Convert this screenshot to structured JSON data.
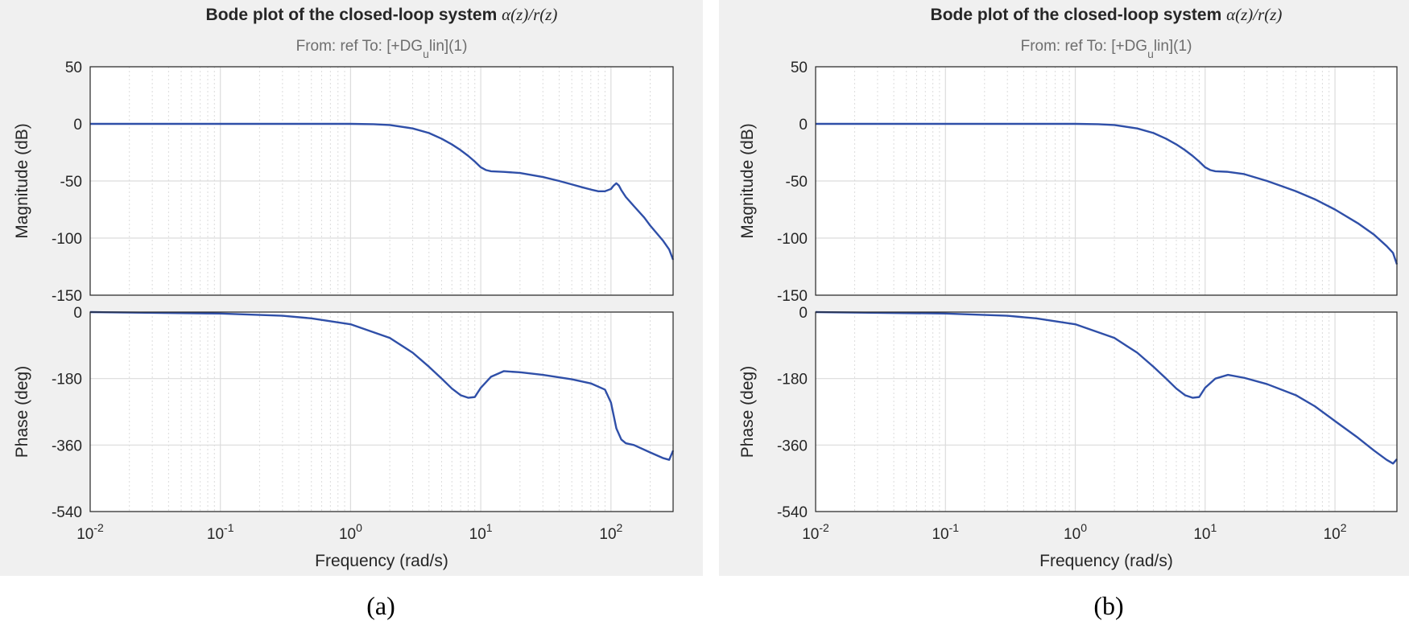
{
  "colors": {
    "panel_bg": "#f0f0f0",
    "axes_bg": "#ffffff",
    "line": "#2f4fa8",
    "grid": "#dcdcdc"
  },
  "chart_data": [
    {
      "type": "line",
      "caption": "(a)",
      "title": "Bode plot of the closed-loop system",
      "title_symbol": "α(z)/r(z)",
      "subtitle": {
        "prefix": "From: ref  To: [+DG",
        "sub": "u",
        "suffix": "lin](1)"
      },
      "xlabel": "Frequency  (rad/s)",
      "xscale": "log",
      "xlim": [
        0.01,
        300
      ],
      "xticks": [
        {
          "base": "10",
          "exp": "-2"
        },
        {
          "base": "10",
          "exp": "-1"
        },
        {
          "base": "10",
          "exp": "0"
        },
        {
          "base": "10",
          "exp": "1"
        },
        {
          "base": "10",
          "exp": "2"
        }
      ],
      "magnitude": {
        "ylabel": "Magnitude (dB)",
        "ylim": [
          -150,
          50
        ],
        "yticks": [
          "50",
          "0",
          "-50",
          "-100",
          "-150"
        ],
        "x": [
          0.01,
          0.1,
          1,
          1.5,
          2,
          3,
          4,
          5,
          6,
          7,
          8,
          9,
          10,
          11,
          12,
          15,
          20,
          30,
          40,
          50,
          60,
          70,
          80,
          90,
          100,
          105,
          110,
          115,
          120,
          130,
          150,
          180,
          200,
          250,
          280,
          300
        ],
        "y": [
          0,
          0,
          0,
          -0.3,
          -1,
          -4,
          -8,
          -13,
          -18,
          -23,
          -28,
          -33,
          -38,
          -40.5,
          -41.5,
          -42,
          -43,
          -46.5,
          -50,
          -53,
          -55.5,
          -57.5,
          -59,
          -59,
          -57,
          -54,
          -52,
          -54,
          -58,
          -64,
          -72,
          -82,
          -89,
          -102,
          -110,
          -119
        ]
      },
      "phase": {
        "ylabel": "Phase (deg)",
        "ylim": [
          -540,
          0
        ],
        "yticks": [
          "0",
          "-180",
          "-360",
          "-540"
        ],
        "x": [
          0.01,
          0.1,
          0.3,
          0.5,
          1,
          2,
          3,
          4,
          5,
          6,
          7,
          8,
          9,
          10,
          12,
          15,
          20,
          30,
          50,
          70,
          90,
          100,
          110,
          120,
          130,
          150,
          200,
          250,
          280,
          300
        ],
        "y": [
          0,
          -4,
          -10,
          -17,
          -33,
          -70,
          -110,
          -148,
          -180,
          -207,
          -225,
          -232,
          -230,
          -205,
          -175,
          -160,
          -163,
          -170,
          -182,
          -193,
          -210,
          -245,
          -315,
          -345,
          -355,
          -360,
          -380,
          -395,
          -400,
          -375
        ]
      }
    },
    {
      "type": "line",
      "caption": "(b)",
      "title": "Bode plot of the closed-loop system",
      "title_symbol": "α(z)/r(z)",
      "subtitle": {
        "prefix": "From: ref  To: [+DG",
        "sub": "u",
        "suffix": "lin](1)"
      },
      "xlabel": "Frequency  (rad/s)",
      "xscale": "log",
      "xlim": [
        0.01,
        300
      ],
      "xticks": [
        {
          "base": "10",
          "exp": "-2"
        },
        {
          "base": "10",
          "exp": "-1"
        },
        {
          "base": "10",
          "exp": "0"
        },
        {
          "base": "10",
          "exp": "1"
        },
        {
          "base": "10",
          "exp": "2"
        }
      ],
      "magnitude": {
        "ylabel": "Magnitude (dB)",
        "ylim": [
          -150,
          50
        ],
        "yticks": [
          "50",
          "0",
          "-50",
          "-100",
          "-150"
        ],
        "x": [
          0.01,
          0.1,
          1,
          1.5,
          2,
          3,
          4,
          5,
          6,
          7,
          8,
          9,
          10,
          11,
          12,
          15,
          20,
          30,
          40,
          50,
          70,
          100,
          150,
          200,
          250,
          280,
          300
        ],
        "y": [
          0,
          0,
          0,
          -0.3,
          -1,
          -4,
          -8,
          -13,
          -18,
          -23,
          -28,
          -33,
          -38,
          -40.5,
          -41.5,
          -42,
          -44,
          -50,
          -55,
          -59,
          -66,
          -75,
          -87,
          -97,
          -107,
          -113,
          -123
        ]
      },
      "phase": {
        "ylabel": "Phase (deg)",
        "ylim": [
          -540,
          0
        ],
        "yticks": [
          "0",
          "-180",
          "-360",
          "-540"
        ],
        "x": [
          0.01,
          0.1,
          0.3,
          0.5,
          1,
          2,
          3,
          4,
          5,
          6,
          7,
          8,
          9,
          10,
          12,
          15,
          20,
          30,
          50,
          70,
          100,
          150,
          200,
          250,
          280,
          300
        ],
        "y": [
          0,
          -4,
          -10,
          -17,
          -33,
          -70,
          -110,
          -148,
          -180,
          -207,
          -225,
          -232,
          -230,
          -205,
          -180,
          -170,
          -178,
          -195,
          -225,
          -255,
          -295,
          -340,
          -375,
          -400,
          -410,
          -398
        ]
      }
    }
  ]
}
